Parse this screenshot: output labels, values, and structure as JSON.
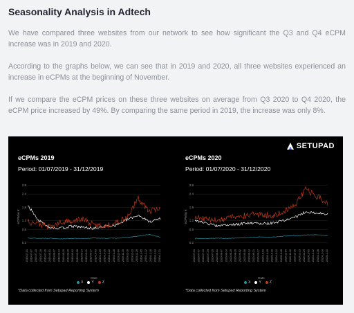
{
  "page": {
    "title": "Seasonality Analysis in Adtech",
    "paragraphs": [
      "We have compared three websites from our network to see how significant the Q3 and Q4 eCPM increase was in 2019 and 2020.",
      "According to the graphs below, we can see that in 2019 and 2020, all three websites experienced an increase in eCPMs at the beginning of November.",
      "If we compare the eCPM prices on these three websites on average from Q3 2020 to Q4 2020, the eCPM price increased by 49%. By comparing the same period in 2019, the increase was only 8%."
    ]
  },
  "brand": {
    "name": "SETUPAD",
    "accent": "#2a6cff"
  },
  "colors": {
    "series_x": "#2a8fa0",
    "series_y": "#ffffff",
    "series_z": "#c0391b",
    "bg": "#000000"
  },
  "charts": [
    {
      "title": "eCPMs 2019",
      "period": "Period: 01/07/2019 - 31/12/2019",
      "ylabel": "eCPM in €",
      "xlabel": "Date",
      "note": "*Data collected from Setupad Reporting System",
      "legend": [
        "X",
        "Y",
        "Z"
      ],
      "yticks": [
        "0.2",
        "0.8",
        "1.2",
        "1.8",
        "2.4",
        "2.8"
      ]
    },
    {
      "title": "eCPMs 2020",
      "period": "Period: 01/07/2020 - 31/12/2020",
      "ylabel": "eCPM in €",
      "xlabel": "Date",
      "note": "*Data collected from Setupad Reporting System",
      "legend": [
        "X",
        "Y",
        "Z"
      ],
      "yticks": [
        "0.2",
        "0.8",
        "1.2",
        "1.8",
        "2.4",
        "2.8"
      ]
    }
  ],
  "chart_data": [
    {
      "type": "line",
      "title": "eCPMs 2019",
      "xlabel": "Date",
      "ylabel": "eCPM in €",
      "x_range": [
        "2019-07-01",
        "2019-12-31"
      ],
      "ylim": [
        0.0,
        3.0
      ],
      "series": [
        {
          "name": "X",
          "values": [
            0.42,
            0.4,
            0.41,
            0.38,
            0.4,
            0.39,
            0.42,
            0.4,
            0.41,
            0.44,
            0.5,
            0.58,
            0.45
          ]
        },
        {
          "name": "Y",
          "values": [
            1.9,
            1.2,
            0.9,
            0.85,
            0.95,
            0.9,
            0.85,
            0.95,
            1.0,
            1.25,
            1.45,
            1.15,
            1.3
          ]
        },
        {
          "name": "Z",
          "values": [
            1.15,
            1.05,
            0.9,
            1.1,
            1.2,
            1.25,
            1.0,
            0.95,
            1.1,
            1.35,
            2.2,
            1.6,
            1.8
          ]
        }
      ]
    },
    {
      "type": "line",
      "title": "eCPMs 2020",
      "xlabel": "Date",
      "ylabel": "eCPM in €",
      "x_range": [
        "2020-07-01",
        "2020-12-31"
      ],
      "ylim": [
        0.0,
        3.0
      ],
      "series": [
        {
          "name": "X",
          "values": [
            0.4,
            0.39,
            0.41,
            0.4,
            0.42,
            0.44,
            0.46,
            0.45,
            0.5,
            0.52,
            0.55,
            0.56,
            0.52
          ]
        },
        {
          "name": "Y",
          "values": [
            1.2,
            1.1,
            0.95,
            1.0,
            1.05,
            1.1,
            1.05,
            1.1,
            1.2,
            1.35,
            1.6,
            1.55,
            1.5
          ]
        },
        {
          "name": "Z",
          "values": [
            1.35,
            1.25,
            1.2,
            1.3,
            1.4,
            1.45,
            1.5,
            1.4,
            1.6,
            1.9,
            2.6,
            2.3,
            2.0
          ]
        }
      ]
    }
  ]
}
